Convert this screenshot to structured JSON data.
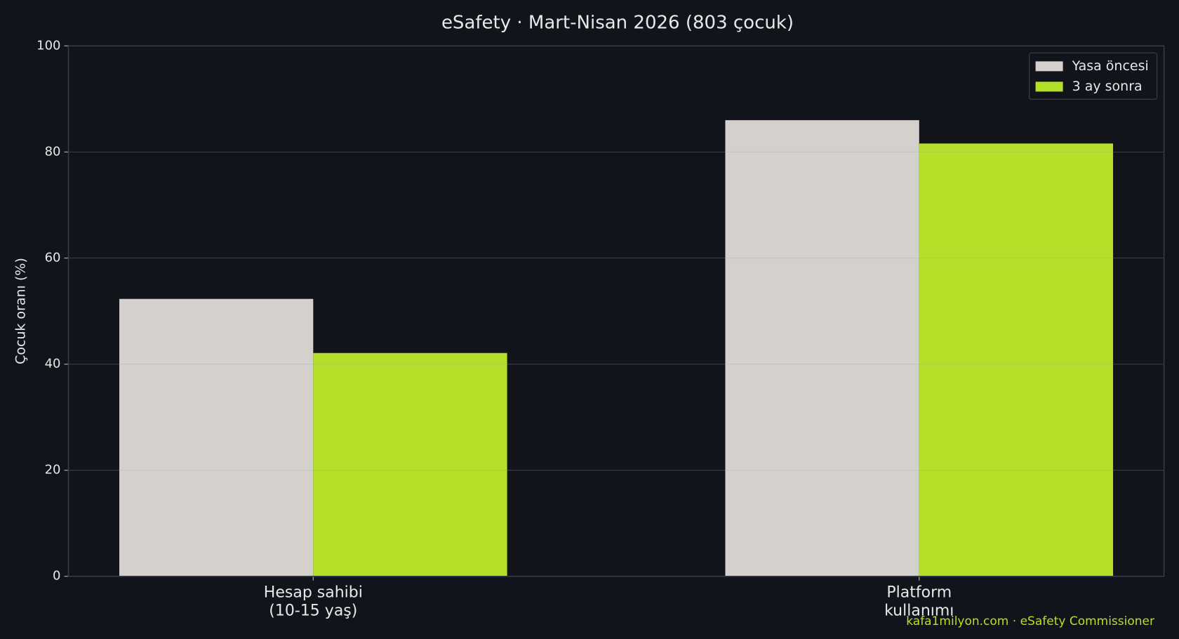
{
  "chart_data": {
    "type": "bar",
    "title": "eSafety · Mart-Nisan 2026 (803 çocuk)",
    "y_label": "Çocuk oranı (%)",
    "categories": [
      [
        "Hesap sahibi",
        "(10-15 yaş)"
      ],
      [
        "Platform",
        "kullanımı"
      ]
    ],
    "series": [
      {
        "name": "Yasa öncesi",
        "color": "#d4d1cc",
        "values": [
          52.3,
          86.0
        ]
      },
      {
        "name": "3 ay sonra",
        "color": "#b5e02a",
        "values": [
          42.1,
          81.6
        ]
      }
    ],
    "ylim": [
      0,
      100
    ],
    "yticks": [
      0,
      20,
      40,
      60,
      80,
      100
    ],
    "grid": true,
    "legend": "upper right",
    "footer": "kafa1milyon.com · eSafety Commissioner"
  }
}
